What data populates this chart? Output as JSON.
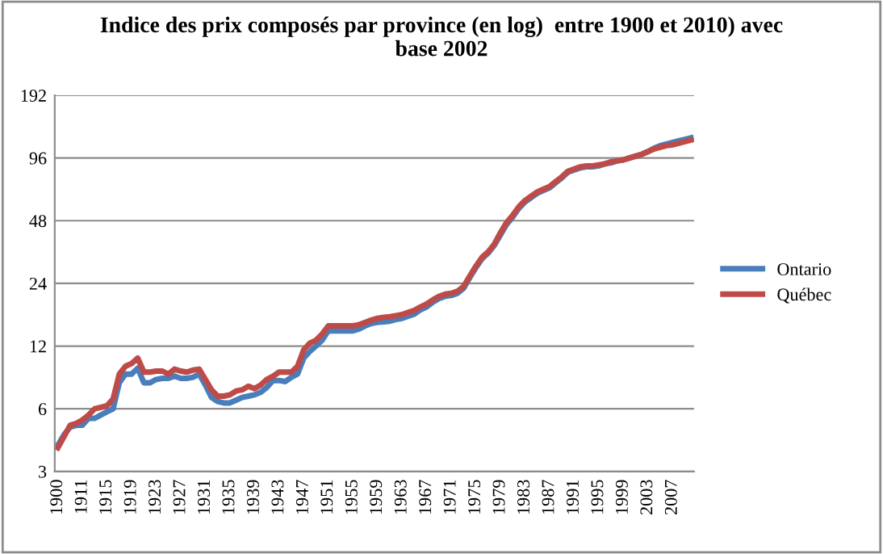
{
  "chart_data": {
    "type": "line",
    "title": "Indice des prix composés par province (en log)  entre 1900 et 2010) avec\nbase 2002",
    "categories": [
      "1900",
      null,
      null,
      null,
      "1911",
      null,
      null,
      null,
      "1915",
      null,
      null,
      null,
      "1919",
      null,
      null,
      null,
      "1923",
      null,
      null,
      null,
      "1927",
      null,
      null,
      null,
      "1931",
      null,
      null,
      null,
      "1935",
      null,
      null,
      null,
      "1939",
      null,
      null,
      null,
      "1943",
      null,
      null,
      null,
      "1947",
      null,
      null,
      null,
      "1951",
      null,
      null,
      null,
      "1955",
      null,
      null,
      null,
      "1959",
      null,
      null,
      null,
      "1963",
      null,
      null,
      null,
      "1967",
      null,
      null,
      null,
      "1971",
      null,
      null,
      null,
      "1975",
      null,
      null,
      null,
      "1979",
      null,
      null,
      null,
      "1983",
      null,
      null,
      null,
      "1987",
      null,
      null,
      null,
      "1991",
      null,
      null,
      null,
      "1995",
      null,
      null,
      null,
      "1999",
      null,
      null,
      null,
      "2003",
      null,
      null,
      null,
      "2007",
      null,
      null,
      null
    ],
    "series": [
      {
        "name": "Ontario",
        "color": "#4a7ebb",
        "values": [
          4.0,
          4.5,
          4.9,
          5.0,
          5.0,
          5.4,
          5.4,
          5.6,
          5.8,
          6.0,
          8.0,
          8.8,
          8.8,
          9.4,
          8.0,
          8.0,
          8.3,
          8.4,
          8.4,
          8.6,
          8.4,
          8.4,
          8.5,
          8.8,
          7.8,
          6.8,
          6.5,
          6.4,
          6.4,
          6.6,
          6.8,
          6.9,
          7.0,
          7.2,
          7.6,
          8.2,
          8.2,
          8.1,
          8.5,
          8.8,
          10.5,
          11.3,
          12.0,
          12.8,
          14.2,
          14.2,
          14.2,
          14.2,
          14.2,
          14.5,
          15.0,
          15.4,
          15.6,
          15.7,
          15.8,
          16.1,
          16.3,
          16.7,
          17.1,
          17.9,
          18.5,
          19.5,
          20.3,
          20.8,
          21,
          21.5,
          22.7,
          25.5,
          28.5,
          31.5,
          33.5,
          36.5,
          41,
          46,
          50,
          55,
          59,
          62,
          65,
          67,
          69,
          73,
          77,
          82,
          84,
          86,
          87,
          87,
          88,
          90,
          91,
          93,
          94,
          96,
          98,
          100,
          103,
          107,
          110,
          112,
          114,
          116,
          118,
          120
        ]
      },
      {
        "name": "Québec",
        "color": "#be4b48",
        "values": [
          3.9,
          4.4,
          5.0,
          5.1,
          5.3,
          5.6,
          6.0,
          6.1,
          6.2,
          6.7,
          8.8,
          9.6,
          9.9,
          10.5,
          9.0,
          9.0,
          9.1,
          9.1,
          8.8,
          9.3,
          9.1,
          9.0,
          9.2,
          9.3,
          8.3,
          7.4,
          6.9,
          6.9,
          7.0,
          7.3,
          7.4,
          7.7,
          7.5,
          7.8,
          8.3,
          8.6,
          9.0,
          9.0,
          9.0,
          9.6,
          11.5,
          12.4,
          12.8,
          13.7,
          15.0,
          15.0,
          15.0,
          15.0,
          15.0,
          15.2,
          15.6,
          16.0,
          16.3,
          16.5,
          16.6,
          16.8,
          17.0,
          17.4,
          17.8,
          18.5,
          19.1,
          20.0,
          20.8,
          21.3,
          21.5,
          22,
          23.2,
          26,
          29,
          32,
          34,
          37,
          42,
          47,
          51,
          56,
          60,
          63,
          66,
          68,
          70,
          74,
          78,
          83,
          85,
          87,
          88,
          88,
          89,
          90,
          92,
          93,
          94,
          96,
          98,
          100,
          103,
          106,
          108,
          110,
          111,
          113,
          115,
          117
        ]
      }
    ],
    "log": "y",
    "ylim": [
      3,
      192
    ],
    "yticks": [
      3,
      6,
      12,
      24,
      48,
      96,
      192
    ],
    "grid": "y",
    "legend": "right",
    "marker": "none",
    "line_style": "solid"
  }
}
